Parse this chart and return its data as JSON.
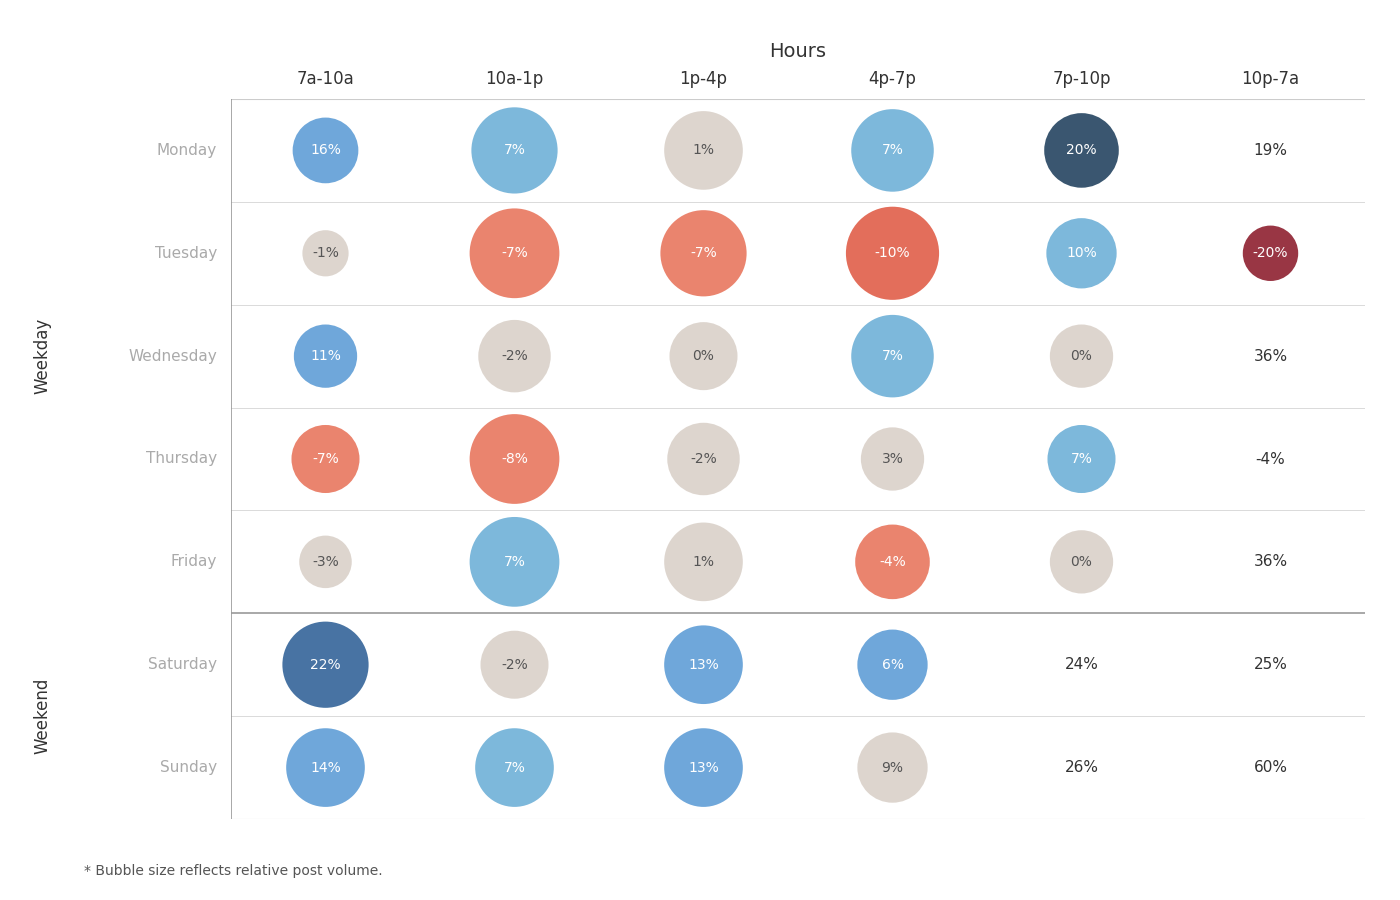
{
  "title": "Hours",
  "col_labels": [
    "7a-10a",
    "10a-1p",
    "1p-4p",
    "4p-7p",
    "7p-10p",
    "10p-7a"
  ],
  "row_labels": [
    "Monday",
    "Tuesday",
    "Wednesday",
    "Thursday",
    "Friday",
    "Saturday",
    "Sunday"
  ],
  "weekday_label": "Weekday",
  "weekend_label": "Weekend",
  "footnote": "* Bubble size reflects relative post volume.",
  "values": [
    [
      16,
      7,
      1,
      7,
      20,
      19
    ],
    [
      -1,
      -7,
      -7,
      -10,
      10,
      -20
    ],
    [
      11,
      -2,
      0,
      7,
      0,
      36
    ],
    [
      -7,
      -8,
      -2,
      3,
      7,
      -4
    ],
    [
      -3,
      7,
      1,
      -4,
      0,
      36
    ],
    [
      22,
      -2,
      13,
      6,
      24,
      25
    ],
    [
      14,
      7,
      13,
      9,
      26,
      60
    ]
  ],
  "sizes": [
    [
      1200,
      2200,
      1800,
      2000,
      1600,
      400
    ],
    [
      500,
      2400,
      2200,
      2600,
      1400,
      800
    ],
    [
      1100,
      1500,
      1300,
      2000,
      1100,
      600
    ],
    [
      1300,
      2400,
      1500,
      1100,
      1300,
      300
    ],
    [
      700,
      2400,
      1800,
      1600,
      1100,
      600
    ],
    [
      2200,
      1300,
      1800,
      1400,
      600,
      600
    ],
    [
      1800,
      1800,
      1800,
      1400,
      600,
      300
    ]
  ],
  "colors": [
    [
      "#5b9bd5",
      "#6baed6",
      "#d9d0c8",
      "#6baed6",
      "#1e3f5c",
      "none"
    ],
    [
      "#d9d0c8",
      "#e8735a",
      "#e8735a",
      "#e05a44",
      "#6baed6",
      "#8b1a2a"
    ],
    [
      "#5b9bd5",
      "#d9d0c8",
      "#d9d0c8",
      "#6baed6",
      "#d9d0c8",
      "none"
    ],
    [
      "#e8735a",
      "#e8735a",
      "#d9d0c8",
      "#d9d0c8",
      "#6baed6",
      "none"
    ],
    [
      "#d9d0c8",
      "#6baed6",
      "#d9d0c8",
      "#e8735a",
      "#d9d0c8",
      "none"
    ],
    [
      "#2e6096",
      "#d9d0c8",
      "#5b9bd5",
      "#5b9bd5",
      "none",
      "none"
    ],
    [
      "#5b9bd5",
      "#6baed6",
      "#5b9bd5",
      "#d9d0c8",
      "none",
      "none"
    ]
  ],
  "text_colors": [
    [
      "white",
      "white",
      "#555555",
      "white",
      "white",
      "#333333"
    ],
    [
      "#555555",
      "white",
      "white",
      "white",
      "white",
      "white"
    ],
    [
      "white",
      "#555555",
      "#555555",
      "white",
      "#555555",
      "#333333"
    ],
    [
      "white",
      "white",
      "#555555",
      "#555555",
      "white",
      "#333333"
    ],
    [
      "#555555",
      "white",
      "#555555",
      "white",
      "#555555",
      "#333333"
    ],
    [
      "white",
      "#555555",
      "white",
      "white",
      "#333333",
      "#333333"
    ],
    [
      "white",
      "white",
      "white",
      "#555555",
      "#333333",
      "#333333"
    ]
  ],
  "bg_color": "#ffffff",
  "text_color": "#333333",
  "row_label_color": "#aaaaaa",
  "separator_color": "#cccccc",
  "divider_color": "#999999"
}
